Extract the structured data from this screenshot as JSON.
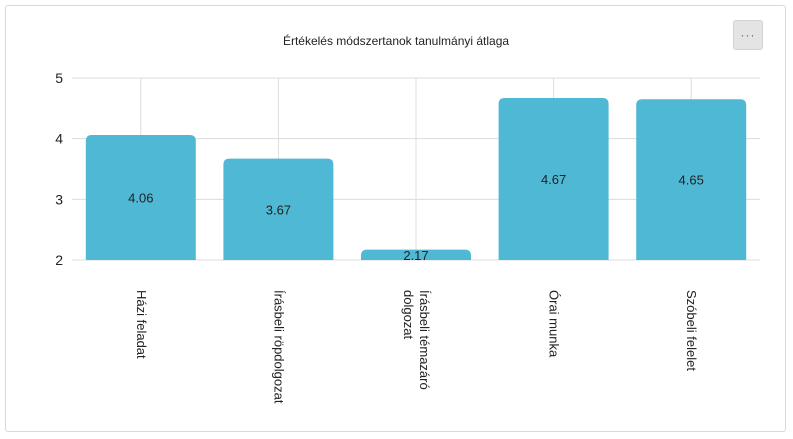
{
  "chart_data": {
    "type": "bar",
    "title": "Értékelés módszertanok tanulmányi átlaga",
    "categories": [
      [
        "Házi feladat"
      ],
      [
        "Írásbeli röpdolgozat"
      ],
      [
        "Írásbeli témazáró",
        "dolgozat"
      ],
      [
        "Órai munka"
      ],
      [
        "Szóbeli felelet"
      ]
    ],
    "series": [
      {
        "values": [
          4.06,
          3.67,
          2.17,
          4.67,
          4.65
        ],
        "labels": [
          "4.06",
          "3.67",
          "2.17",
          "4.67",
          "4.65"
        ]
      }
    ],
    "ylim": [
      2,
      5
    ],
    "yticks": [
      "2",
      "3",
      "4",
      "5"
    ],
    "grid": true,
    "color": "#4fb9d5"
  },
  "menu": {
    "label": "···"
  }
}
